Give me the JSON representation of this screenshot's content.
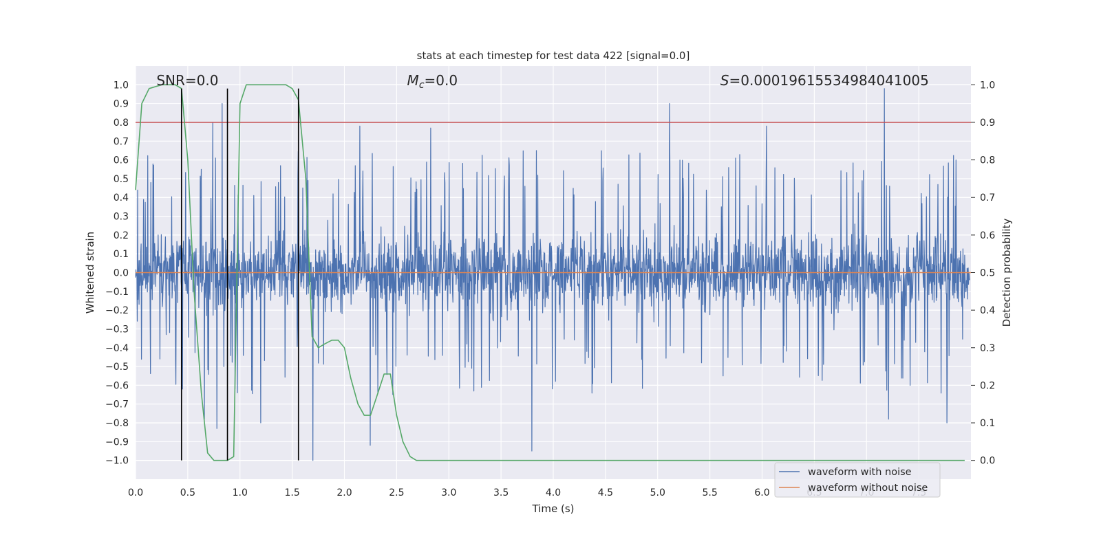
{
  "chart_data": {
    "type": "line",
    "title": "stats at each timestep for test data 422 [signal=0.0]",
    "xlabel": "Time (s)",
    "ylabel_left": "Whitened strain",
    "ylabel_right": "Detection probability",
    "xlim": [
      0.0,
      8.0
    ],
    "ylim_left": [
      -1.1,
      1.1
    ],
    "ylim_right": [
      -0.05,
      1.05
    ],
    "x_ticks": [
      "0.0",
      "0.5",
      "1.0",
      "1.5",
      "2.0",
      "2.5",
      "3.0",
      "3.5",
      "4.0",
      "4.5",
      "5.0",
      "5.5",
      "6.0",
      "6.5",
      "7.0",
      "7.5"
    ],
    "x_tick_values": [
      0.0,
      0.5,
      1.0,
      1.5,
      2.0,
      2.5,
      3.0,
      3.5,
      4.0,
      4.5,
      5.0,
      5.5,
      6.0,
      6.5,
      7.0,
      7.5
    ],
    "y_left_ticks": [
      "1.0",
      "0.9",
      "0.8",
      "0.7",
      "0.6",
      "0.5",
      "0.4",
      "0.3",
      "0.2",
      "0.1",
      "0.0",
      "−0.1",
      "−0.2",
      "−0.3",
      "−0.4",
      "−0.5",
      "−0.6",
      "−0.7",
      "−0.8",
      "−0.9",
      "−1.0"
    ],
    "y_left_tick_values": [
      1.0,
      0.9,
      0.8,
      0.7,
      0.6,
      0.5,
      0.4,
      0.3,
      0.2,
      0.1,
      0.0,
      -0.1,
      -0.2,
      -0.3,
      -0.4,
      -0.5,
      -0.6,
      -0.7,
      -0.8,
      -0.9,
      -1.0
    ],
    "y_right_ticks": [
      "1.0",
      "0.9",
      "0.8",
      "0.7",
      "0.6",
      "0.5",
      "0.4",
      "0.3",
      "0.2",
      "0.1",
      "0.0"
    ],
    "y_right_tick_values": [
      1.0,
      0.9,
      0.8,
      0.7,
      0.6,
      0.5,
      0.4,
      0.3,
      0.2,
      0.1,
      0.0
    ],
    "annotations": {
      "snr": "SNR=0.0",
      "mc_symbol": "M",
      "mc_sub": "c",
      "mc_value": "=0.0",
      "s_symbol": "S",
      "s_value": "=0.00019615534984041005"
    },
    "series": [
      {
        "name": "waveform with noise",
        "color": "#4c72b0",
        "axis": "left",
        "description_stat": {
          "typical_upper": 0.4,
          "typical_lower": -0.4
        },
        "spikes": [
          {
            "x": 0.45,
            "y": -0.62
          },
          {
            "x": 0.63,
            "y": 0.55
          },
          {
            "x": 0.66,
            "y": -0.78
          },
          {
            "x": 0.74,
            "y": 0.8
          },
          {
            "x": 0.78,
            "y": -0.83
          },
          {
            "x": 0.83,
            "y": 0.9
          },
          {
            "x": 1.2,
            "y": -0.8
          },
          {
            "x": 1.7,
            "y": -1.0
          },
          {
            "x": 2.15,
            "y": 0.78
          },
          {
            "x": 2.25,
            "y": -0.92
          },
          {
            "x": 2.83,
            "y": 0.77
          },
          {
            "x": 3.8,
            "y": -0.95
          },
          {
            "x": 5.12,
            "y": 0.9
          },
          {
            "x": 6.05,
            "y": 0.78
          },
          {
            "x": 7.18,
            "y": 0.98
          },
          {
            "x": 7.22,
            "y": -0.78
          },
          {
            "x": 7.78,
            "y": -0.8
          }
        ]
      },
      {
        "name": "waveform without noise",
        "color": "#dd8452",
        "axis": "left",
        "x": [
          0.0,
          8.0
        ],
        "y": [
          0.0,
          0.0
        ]
      },
      {
        "name": "detection probability",
        "color": "#55a868",
        "axis": "right",
        "x": [
          0.0,
          0.06,
          0.13,
          0.25,
          0.38,
          0.44,
          0.5,
          0.56,
          0.63,
          0.69,
          0.75,
          0.81,
          0.88,
          0.94,
          1.0,
          1.06,
          1.13,
          1.25,
          1.38,
          1.44,
          1.5,
          1.56,
          1.63,
          1.69,
          1.75,
          1.81,
          1.88,
          1.94,
          2.0,
          2.06,
          2.13,
          2.19,
          2.25,
          2.31,
          2.38,
          2.44,
          2.5,
          2.56,
          2.63,
          2.69,
          3.0,
          4.0,
          5.0,
          6.0,
          7.0,
          7.94
        ],
        "y": [
          0.72,
          0.95,
          0.99,
          1.0,
          1.0,
          0.99,
          0.8,
          0.45,
          0.18,
          0.02,
          0.0,
          0.0,
          0.0,
          0.01,
          0.95,
          1.0,
          1.0,
          1.0,
          1.0,
          1.0,
          0.99,
          0.96,
          0.75,
          0.33,
          0.3,
          0.31,
          0.32,
          0.32,
          0.3,
          0.22,
          0.15,
          0.12,
          0.12,
          0.17,
          0.23,
          0.23,
          0.12,
          0.05,
          0.01,
          0.0,
          0.0,
          0.0,
          0.0,
          0.0,
          0.0,
          0.0
        ]
      }
    ],
    "threshold": {
      "value": 0.9,
      "axis": "right",
      "color": "#c44e52"
    },
    "vertical_lines": [
      0.44,
      0.88,
      1.56
    ],
    "vertical_lines_range_left": [
      -1.0,
      0.98
    ],
    "legend": {
      "placement": "lower-right",
      "entries": [
        "waveform with noise",
        "waveform without noise"
      ]
    },
    "style": {
      "axes_bg": "#eaeaf2",
      "grid": true,
      "grid_color": "#ffffff",
      "text_color": "#262626",
      "vline_color": "#000000"
    }
  }
}
